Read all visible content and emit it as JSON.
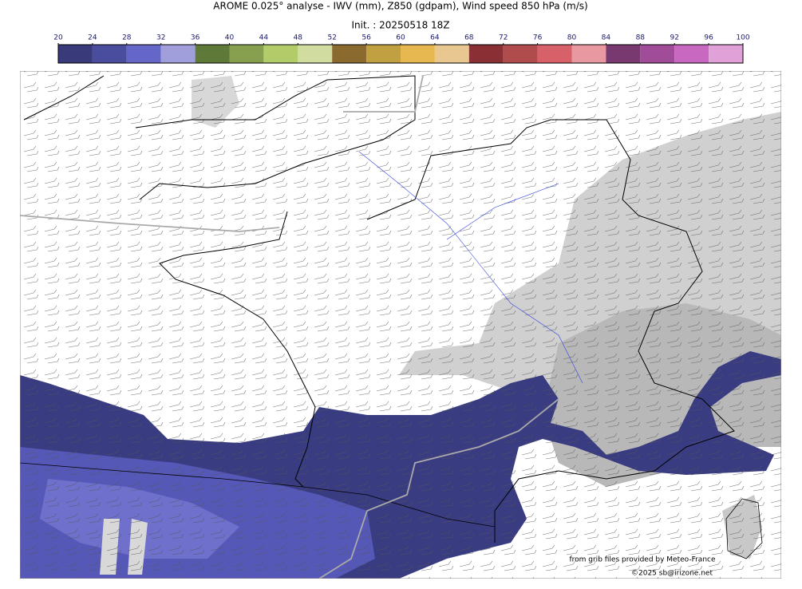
{
  "header": {
    "title": "AROME 0.025° analyse - IWV (mm), Z850 (gdpam), Wind speed 850 hPa (m/s)",
    "init": "Init. : 20250518 18Z"
  },
  "colorbar": {
    "ticks": [
      20,
      24,
      28,
      32,
      36,
      40,
      44,
      48,
      52,
      56,
      60,
      64,
      68,
      72,
      76,
      80,
      84,
      88,
      92,
      96,
      100
    ],
    "colors": [
      "#383a7a",
      "#4a4c9e",
      "#6466c8",
      "#a09fdc",
      "#5f7a38",
      "#87a050",
      "#b2cc6a",
      "#d0dca0",
      "#8a6a2e",
      "#c0a040",
      "#e8b850",
      "#e8c890",
      "#8a3034",
      "#b04c4c",
      "#d86068",
      "#e898a0",
      "#783870",
      "#a04c98",
      "#c868c0",
      "#e0a0d8"
    ]
  },
  "credits": {
    "source": "from grib files provided by Meteo-France",
    "copyright": "©2025 sb@irizone.net"
  }
}
